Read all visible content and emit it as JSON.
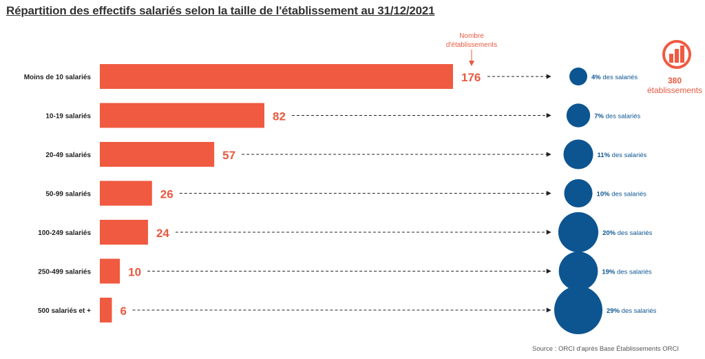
{
  "title": "Répartition des effectifs salariés selon la taille de l'établissement au 31/12/2021",
  "source": "Source : ORCI d'après Base Établissements ORCI",
  "annotation": {
    "line1": "Nombre",
    "line2": "d'établissements"
  },
  "total": {
    "value": "380",
    "label": "établissements",
    "icon": "orci-logo-icon"
  },
  "colors": {
    "bar": "#ef5a41",
    "bubble": "#0d5591",
    "bubble_text": "#0d5591",
    "value_text": "#e8593f"
  },
  "chart_data": {
    "type": "bar",
    "orientation": "horizontal",
    "categories": [
      "Moins de 10 salariés",
      "10-19 salariés",
      "20-49 salariés",
      "50-99 salariés",
      "100-249 salariés",
      "250-499 salariés",
      "500 salariés et +"
    ],
    "series": [
      {
        "values": [
          176,
          82,
          57,
          26,
          24,
          10,
          6
        ]
      }
    ],
    "bubbles": {
      "values": [
        4,
        7,
        11,
        10,
        20,
        19,
        29
      ],
      "labels": [
        "4%",
        "7%",
        "11%",
        "10%",
        "20%",
        "19%",
        "29%"
      ],
      "suffix": "des salariés"
    }
  }
}
